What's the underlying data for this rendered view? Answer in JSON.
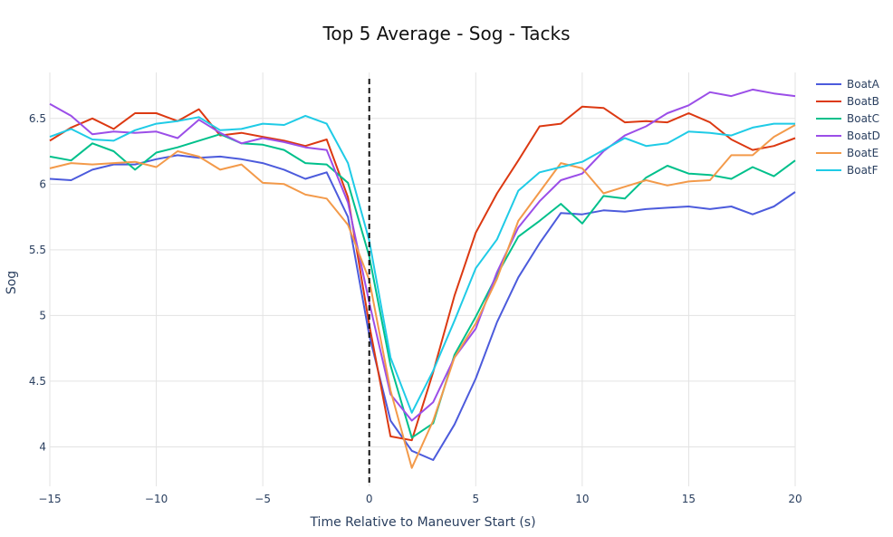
{
  "chart_data": {
    "type": "line",
    "title": "Top 5 Average - Sog - Tacks",
    "xlabel": "Time Relative to Maneuver Start (s)",
    "ylabel": "Sog",
    "xlim": [
      -15,
      20
    ],
    "ylim": [
      3.7,
      6.85
    ],
    "xticks": [
      -15,
      -10,
      -5,
      0,
      5,
      10,
      15,
      20
    ],
    "xtick_labels": [
      "−15",
      "−10",
      "−5",
      "0",
      "5",
      "10",
      "15",
      "20"
    ],
    "yticks": [
      4,
      4.5,
      5,
      5.5,
      6,
      6.5
    ],
    "ytick_labels": [
      "4",
      "4.5",
      "5",
      "5.5",
      "6",
      "6.5"
    ],
    "grid": true,
    "legend_position": "top-right",
    "vline": {
      "x": 0,
      "style": "dashed",
      "color": "#111111"
    },
    "x": [
      -15,
      -14,
      -13,
      -12,
      -11,
      -10,
      -9,
      -8,
      -7,
      -6,
      -5,
      -4,
      -3,
      -2,
      -1,
      0,
      1,
      2,
      3,
      4,
      5,
      6,
      7,
      8,
      9,
      10,
      11,
      12,
      13,
      14,
      15,
      16,
      17,
      18,
      19,
      20
    ],
    "series": [
      {
        "name": "BoatA",
        "color": "#4c5bdc",
        "values": [
          6.04,
          6.03,
          6.11,
          6.15,
          6.15,
          6.19,
          6.22,
          6.2,
          6.21,
          6.19,
          6.16,
          6.11,
          6.04,
          6.09,
          5.75,
          4.85,
          4.2,
          3.97,
          3.9,
          4.17,
          4.52,
          4.95,
          5.29,
          5.55,
          5.78,
          5.77,
          5.8,
          5.79,
          5.81,
          5.82,
          5.83,
          5.81,
          5.83,
          5.77,
          5.83,
          5.94
        ]
      },
      {
        "name": "BoatB",
        "color": "#dc3912",
        "values": [
          6.33,
          6.43,
          6.5,
          6.42,
          6.54,
          6.54,
          6.48,
          6.57,
          6.37,
          6.39,
          6.36,
          6.33,
          6.29,
          6.34,
          5.9,
          4.93,
          4.08,
          4.05,
          4.57,
          5.15,
          5.63,
          5.93,
          6.18,
          6.44,
          6.46,
          6.59,
          6.58,
          6.47,
          6.48,
          6.47,
          6.54,
          6.47,
          6.34,
          6.26,
          6.29,
          6.35
        ]
      },
      {
        "name": "BoatC",
        "color": "#00c08b",
        "values": [
          6.21,
          6.18,
          6.31,
          6.25,
          6.11,
          6.24,
          6.28,
          6.33,
          6.38,
          6.31,
          6.3,
          6.26,
          6.16,
          6.15,
          6.01,
          5.45,
          4.62,
          4.07,
          4.18,
          4.7,
          4.99,
          5.31,
          5.6,
          5.72,
          5.85,
          5.7,
          5.91,
          5.89,
          6.05,
          6.14,
          6.08,
          6.07,
          6.04,
          6.13,
          6.06,
          6.18
        ]
      },
      {
        "name": "BoatD",
        "color": "#9b4ee8",
        "values": [
          6.61,
          6.52,
          6.38,
          6.4,
          6.39,
          6.4,
          6.35,
          6.49,
          6.39,
          6.31,
          6.35,
          6.32,
          6.28,
          6.26,
          5.86,
          5.1,
          4.4,
          4.2,
          4.34,
          4.68,
          4.9,
          5.33,
          5.67,
          5.87,
          6.03,
          6.08,
          6.25,
          6.37,
          6.44,
          6.54,
          6.6,
          6.7,
          6.67,
          6.72,
          6.69,
          6.67
        ]
      },
      {
        "name": "BoatE",
        "color": "#f39a4a",
        "values": [
          6.12,
          6.16,
          6.15,
          6.16,
          6.17,
          6.13,
          6.25,
          6.21,
          6.11,
          6.15,
          6.01,
          6.0,
          5.92,
          5.89,
          5.69,
          5.27,
          4.43,
          3.84,
          4.2,
          4.68,
          4.94,
          5.28,
          5.72,
          5.94,
          6.16,
          6.12,
          5.93,
          5.98,
          6.03,
          5.99,
          6.02,
          6.03,
          6.22,
          6.22,
          6.36,
          6.45
        ]
      },
      {
        "name": "BoatF",
        "color": "#1fcbe6",
        "values": [
          6.36,
          6.42,
          6.34,
          6.33,
          6.41,
          6.46,
          6.48,
          6.51,
          6.41,
          6.42,
          6.46,
          6.45,
          6.52,
          6.46,
          6.16,
          5.57,
          4.68,
          4.26,
          4.58,
          4.96,
          5.36,
          5.58,
          5.95,
          6.09,
          6.13,
          6.17,
          6.26,
          6.35,
          6.29,
          6.31,
          6.4,
          6.39,
          6.37,
          6.43,
          6.46,
          6.46
        ]
      }
    ]
  }
}
